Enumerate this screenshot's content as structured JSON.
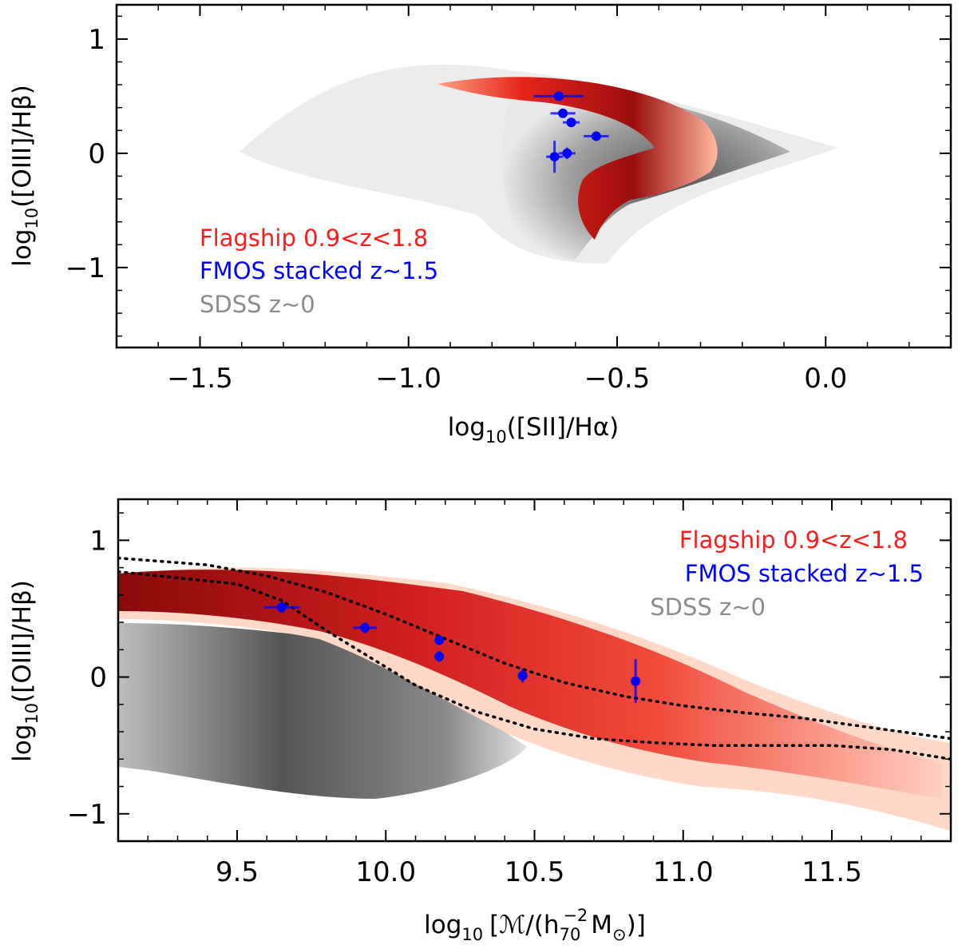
{
  "chart_data": [
    {
      "type": "scatter",
      "xlabel": {
        "base": "log",
        "sub": "10",
        "rest": "([SII]/Hα)"
      },
      "ylabel": {
        "base": "log",
        "sub": "10",
        "rest": "([OIII]/Hβ)"
      },
      "xlim": [
        -1.7,
        0.3
      ],
      "ylim": [
        -1.7,
        1.3
      ],
      "xticks": [
        -1.5,
        -1.0,
        -0.5,
        0.0
      ],
      "xtick_labels": [
        "−1.5",
        "−1.0",
        "−0.5",
        "0.0"
      ],
      "yticks": [
        -1,
        0,
        1
      ],
      "ytick_labels": [
        "−1",
        "0",
        "1"
      ],
      "legend_position": "lower-left",
      "legend": [
        {
          "label": "Flagship 0.9<z<1.8",
          "color": "#ff1a1a"
        },
        {
          "label": "FMOS stacked z~1.5",
          "color": "#0000ff"
        },
        {
          "label": "SDSS z~0",
          "color": "#8c8c8c"
        }
      ],
      "series": [
        {
          "name": "FMOS stacked z~1.5",
          "color": "#0000ff",
          "points": [
            {
              "x": -0.64,
              "y": 0.5,
              "xerr": 0.06,
              "yerr": 0.04
            },
            {
              "x": -0.63,
              "y": 0.35,
              "xerr": 0.03,
              "yerr": 0.04
            },
            {
              "x": -0.61,
              "y": 0.27,
              "xerr": 0.02,
              "yerr": 0.04
            },
            {
              "x": -0.55,
              "y": 0.15,
              "xerr": 0.03,
              "yerr": 0.04
            },
            {
              "x": -0.62,
              "y": 0.0,
              "xerr": 0.02,
              "yerr": 0.05
            },
            {
              "x": -0.65,
              "y": -0.03,
              "xerr": 0.02,
              "yerr": 0.14
            }
          ]
        }
      ]
    },
    {
      "type": "scatter",
      "xlabel": {
        "pre": "log",
        "sub": "10",
        "rest": "[ℳ/(h",
        "hsub": "70",
        "hsup": "−2",
        "rest2": "M",
        "msub": "⊙",
        "end": ")]"
      },
      "ylabel": {
        "base": "log",
        "sub": "10",
        "rest": "([OIII]/Hβ)"
      },
      "xlim": [
        9.1,
        11.9
      ],
      "ylim": [
        -1.2,
        1.3
      ],
      "xticks": [
        9.5,
        10.0,
        10.5,
        11.0,
        11.5
      ],
      "xtick_labels": [
        "9.5",
        "10.0",
        "10.5",
        "11.0",
        "11.5"
      ],
      "yticks": [
        -1,
        0,
        1
      ],
      "ytick_labels": [
        "−1",
        "0",
        "1"
      ],
      "legend_position": "upper-right",
      "legend": [
        {
          "label": "Flagship 0.9<z<1.8",
          "color": "#ff1a1a"
        },
        {
          "label": "FMOS stacked z~1.5",
          "color": "#0000ff"
        },
        {
          "label": "SDSS z~0",
          "color": "#8c8c8c"
        }
      ],
      "series": [
        {
          "name": "FMOS stacked z~1.5",
          "color": "#0000ff",
          "points": [
            {
              "x": 9.65,
              "y": 0.51,
              "xerr": 0.06,
              "yerr": 0.04
            },
            {
              "x": 9.93,
              "y": 0.36,
              "xerr": 0.04,
              "yerr": 0.04
            },
            {
              "x": 10.18,
              "y": 0.27,
              "xerr": 0.01,
              "yerr": 0.03
            },
            {
              "x": 10.18,
              "y": 0.15,
              "xerr": 0.01,
              "yerr": 0.04
            },
            {
              "x": 10.46,
              "y": 0.01,
              "xerr": 0.01,
              "yerr": 0.05
            },
            {
              "x": 10.84,
              "y": -0.03,
              "xerr": 0.01,
              "yerr": 0.16
            }
          ]
        }
      ],
      "curves": [
        {
          "x": [
            9.1,
            9.4,
            9.6,
            9.8,
            10.0,
            10.2,
            10.4,
            10.6,
            10.8,
            11.0,
            11.2,
            11.4,
            11.6,
            11.9
          ],
          "y": [
            0.87,
            0.82,
            0.74,
            0.62,
            0.46,
            0.28,
            0.1,
            -0.04,
            -0.14,
            -0.21,
            -0.26,
            -0.3,
            -0.36,
            -0.45
          ]
        },
        {
          "x": [
            9.1,
            9.5,
            9.65,
            9.8,
            9.95,
            10.1,
            10.3,
            10.5,
            10.7,
            10.9,
            11.1,
            11.3,
            11.5,
            11.7,
            11.9
          ],
          "y": [
            0.77,
            0.68,
            0.56,
            0.34,
            0.14,
            -0.06,
            -0.25,
            -0.38,
            -0.45,
            -0.48,
            -0.5,
            -0.5,
            -0.5,
            -0.53,
            -0.6
          ]
        }
      ]
    }
  ]
}
